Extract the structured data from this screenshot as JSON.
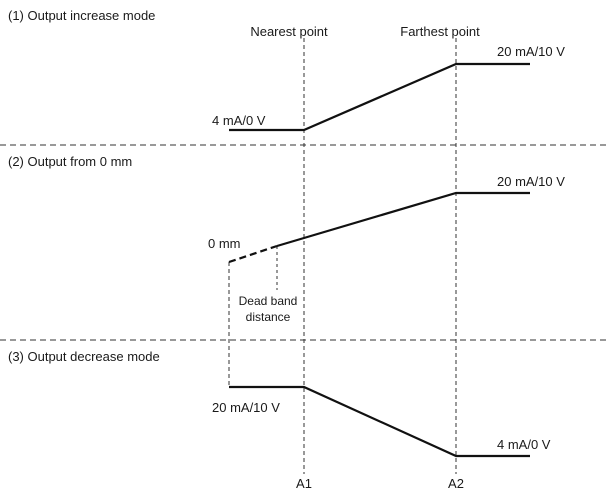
{
  "sections": [
    {
      "title": "(1) Output increase mode"
    },
    {
      "title": "(2) Output from 0 mm"
    },
    {
      "title": "(3) Output decrease mode"
    }
  ],
  "markers": {
    "nearest_label": "Nearest point",
    "farthest_label": "Farthest point",
    "a1_label": "A1",
    "a2_label": "A2"
  },
  "labels": {
    "s1_low": "4 mA/0 V",
    "s1_high": "20 mA/10 V",
    "s2_high": "20 mA/10 V",
    "s2_zero": "0 mm",
    "s2_deadband_line1": "Dead band",
    "s2_deadband_line2": "distance",
    "s3_high": "20 mA/10 V",
    "s3_low": "4 mA/0 V"
  }
}
